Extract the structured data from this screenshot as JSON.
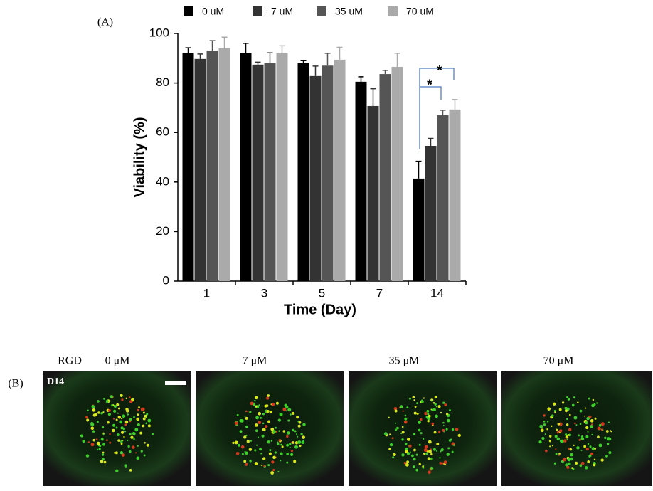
{
  "panel_a_label": "(A)",
  "chart_data": {
    "type": "bar",
    "xlabel": "Time (Day)",
    "ylabel": "Viability (%)",
    "categories": [
      "1",
      "3",
      "5",
      "7",
      "14"
    ],
    "series": [
      {
        "name": "0 uM",
        "color": "#000000",
        "values": [
          92.2,
          92,
          88,
          80.5,
          41.4
        ],
        "errors": [
          2,
          4,
          1,
          2,
          7
        ]
      },
      {
        "name": "7 uM",
        "color": "#333333",
        "values": [
          89.7,
          87.4,
          82.8,
          70.7,
          54.6
        ],
        "errors": [
          2,
          1,
          4,
          7,
          3
        ]
      },
      {
        "name": "35 uM",
        "color": "#555555",
        "values": [
          93.1,
          88.2,
          87,
          83.6,
          67
        ],
        "errors": [
          4,
          4,
          5,
          1.5,
          2
        ]
      },
      {
        "name": "70 uM",
        "color": "#aaaaaa",
        "values": [
          94,
          92,
          89.4,
          86.5,
          69.3
        ],
        "errors": [
          4.5,
          3,
          5,
          5.5,
          4
        ]
      }
    ],
    "ylim": [
      0,
      100
    ],
    "yticks": [
      0,
      20,
      40,
      60,
      80,
      100
    ],
    "annotations": [
      "*",
      "*"
    ],
    "legend": "top"
  },
  "panel_b": {
    "label": "(B)",
    "row_label": "RGD",
    "columns": [
      "0 μM",
      "7 μM",
      "35 μM",
      "70 μM"
    ],
    "day_label": "D14"
  }
}
